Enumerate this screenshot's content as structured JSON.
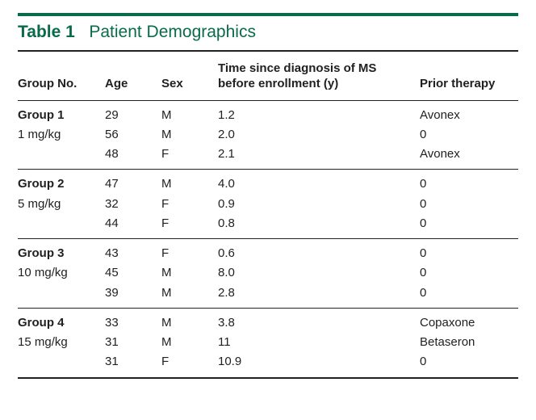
{
  "accent_color": "#0a6b4a",
  "title_label": "Table 1",
  "title_caption": "Patient Demographics",
  "columns": {
    "group": "Group No.",
    "age": "Age",
    "sex": "Sex",
    "time": "Time since diagnosis of MS before enrollment (y)",
    "prior": "Prior therapy"
  },
  "groups": [
    {
      "name": "Group 1",
      "dose": "1 mg/kg",
      "rows": [
        {
          "age": "29",
          "sex": "M",
          "time": "1.2",
          "prior": "Avonex"
        },
        {
          "age": "56",
          "sex": "M",
          "time": "2.0",
          "prior": "0"
        },
        {
          "age": "48",
          "sex": "F",
          "time": "2.1",
          "prior": "Avonex"
        }
      ]
    },
    {
      "name": "Group 2",
      "dose": "5 mg/kg",
      "rows": [
        {
          "age": "47",
          "sex": "M",
          "time": "4.0",
          "prior": "0"
        },
        {
          "age": "32",
          "sex": "F",
          "time": "0.9",
          "prior": "0"
        },
        {
          "age": "44",
          "sex": "F",
          "time": "0.8",
          "prior": "0"
        }
      ]
    },
    {
      "name": "Group 3",
      "dose": "10 mg/kg",
      "rows": [
        {
          "age": "43",
          "sex": "F",
          "time": "0.6",
          "prior": "0"
        },
        {
          "age": "45",
          "sex": "M",
          "time": "8.0",
          "prior": "0"
        },
        {
          "age": "39",
          "sex": "M",
          "time": "2.8",
          "prior": "0"
        }
      ]
    },
    {
      "name": "Group 4",
      "dose": "15 mg/kg",
      "rows": [
        {
          "age": "33",
          "sex": "M",
          "time": "3.8",
          "prior": "Copaxone"
        },
        {
          "age": "31",
          "sex": "M",
          "time": "11",
          "prior": "Betaseron"
        },
        {
          "age": "31",
          "sex": "F",
          "time": "10.9",
          "prior": "0"
        }
      ]
    }
  ]
}
